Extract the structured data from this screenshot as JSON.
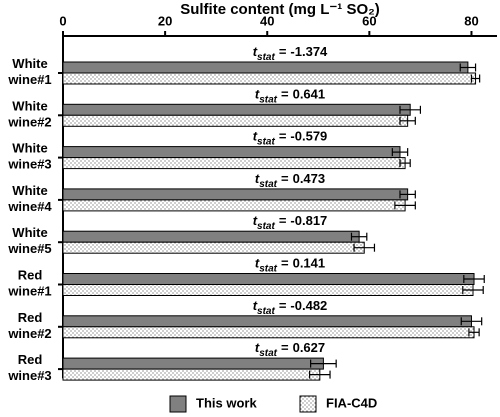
{
  "chart_data": {
    "type": "bar",
    "orientation": "horizontal",
    "title": "Sulfite content (mg L⁻¹ SO₂)",
    "categories": [
      [
        "White",
        "wine#1"
      ],
      [
        "White",
        "wine#2"
      ],
      [
        "White",
        "wine#3"
      ],
      [
        "White",
        "wine#4"
      ],
      [
        "White",
        "wine#5"
      ],
      [
        "Red",
        "wine#1"
      ],
      [
        "Red",
        "wine#2"
      ],
      [
        "Red",
        "wine#3"
      ]
    ],
    "series": [
      {
        "name": "This work",
        "color": "#808080",
        "pattern": "solid",
        "values": [
          79.3,
          68.0,
          66.0,
          67.5,
          58.0,
          80.5,
          80.0,
          51.0
        ],
        "errors": [
          1.5,
          2.0,
          1.5,
          1.5,
          1.5,
          2.0,
          2.0,
          2.5
        ]
      },
      {
        "name": "FIA-C4D",
        "color": "#ffffff",
        "pattern": "dots",
        "values": [
          80.8,
          67.5,
          67.0,
          67.0,
          59.0,
          80.3,
          80.5,
          50.3
        ],
        "errors": [
          0.8,
          1.5,
          1.0,
          2.0,
          2.0,
          2.0,
          1.0,
          2.0
        ]
      }
    ],
    "annotation_symbol": {
      "main": "t",
      "subscript": "stat",
      "operator": "="
    },
    "annotations": [
      -1.374,
      0.641,
      -0.579,
      0.473,
      -0.817,
      0.141,
      -0.482,
      0.627
    ],
    "xlim": [
      0,
      85
    ],
    "xticks": [
      0,
      20,
      40,
      60,
      80
    ],
    "legend": "bottom"
  }
}
